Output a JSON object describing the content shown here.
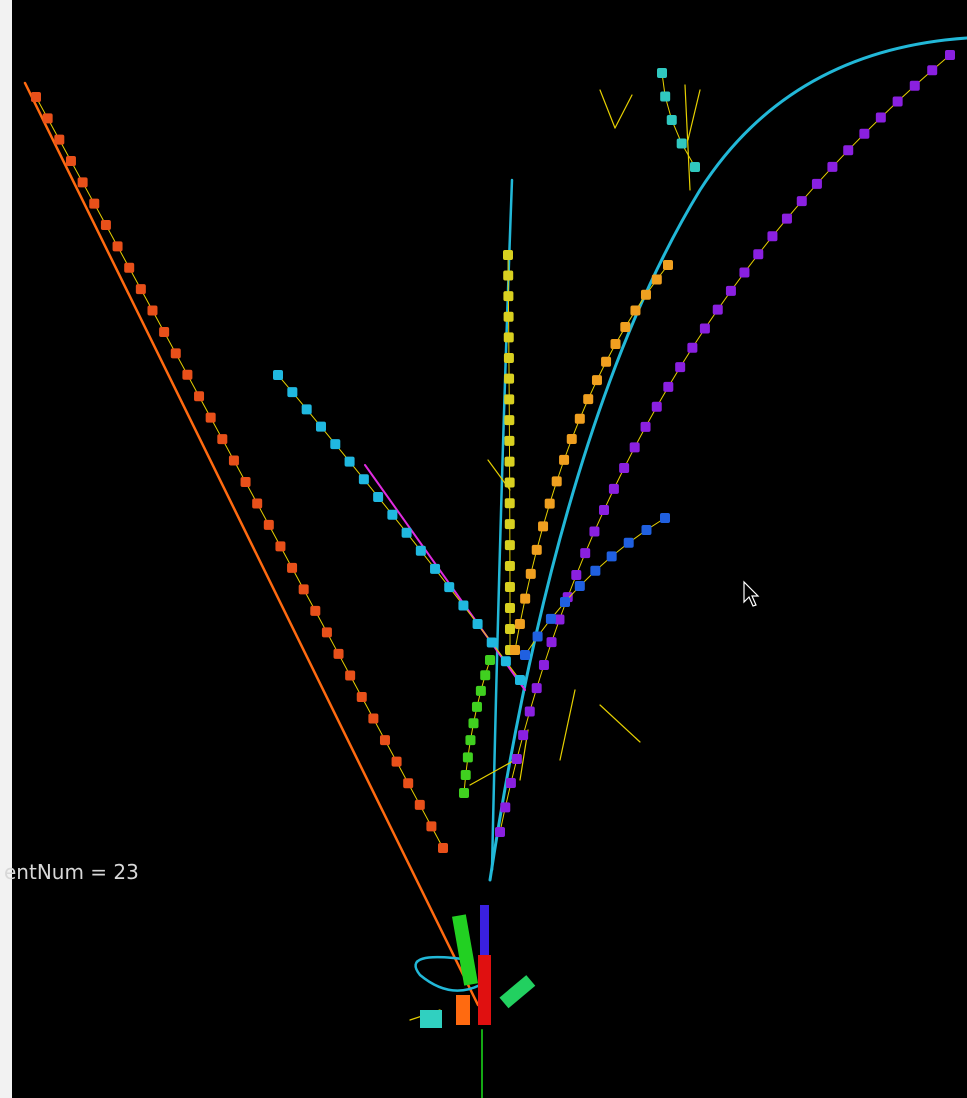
{
  "overlay": {
    "event_label": "entNum = 23"
  }
}
